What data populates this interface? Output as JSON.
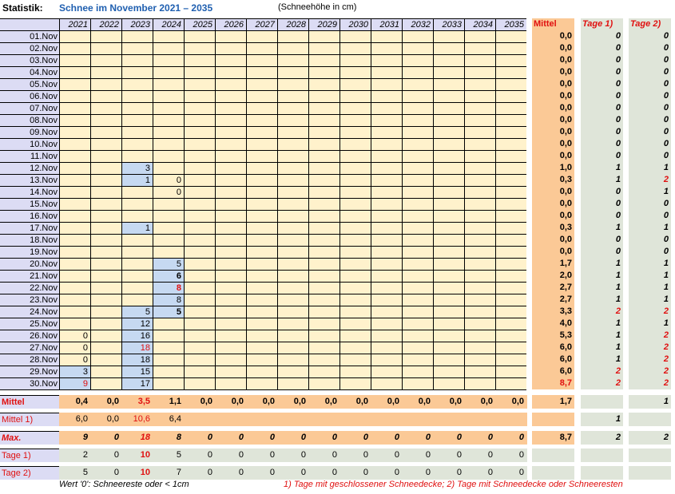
{
  "header": {
    "label": "Statistik:",
    "title": "Schnee im November 2021 – 2035",
    "unit": "(Schneehöhe in cm)"
  },
  "years": [
    "2021",
    "2022",
    "2023",
    "2024",
    "2025",
    "2026",
    "2027",
    "2028",
    "2029",
    "2030",
    "2031",
    "2032",
    "2033",
    "2034",
    "2035"
  ],
  "columns": {
    "mittel": "Mittel",
    "tage1": "Tage 1)",
    "tage2": "Tage 2)"
  },
  "days": [
    {
      "label": "01.Nov",
      "v": [
        null,
        null,
        null,
        null
      ],
      "mittel": "0,0",
      "t1": "0",
      "t2": "0"
    },
    {
      "label": "02.Nov",
      "v": [
        null,
        null,
        null,
        null
      ],
      "mittel": "0,0",
      "t1": "0",
      "t2": "0"
    },
    {
      "label": "03.Nov",
      "v": [
        null,
        null,
        null,
        null
      ],
      "mittel": "0,0",
      "t1": "0",
      "t2": "0"
    },
    {
      "label": "04.Nov",
      "v": [
        null,
        null,
        null,
        null
      ],
      "mittel": "0,0",
      "t1": "0",
      "t2": "0"
    },
    {
      "label": "05.Nov",
      "v": [
        null,
        null,
        null,
        null
      ],
      "mittel": "0,0",
      "t1": "0",
      "t2": "0"
    },
    {
      "label": "06.Nov",
      "v": [
        null,
        null,
        null,
        null
      ],
      "mittel": "0,0",
      "t1": "0",
      "t2": "0"
    },
    {
      "label": "07.Nov",
      "v": [
        null,
        null,
        null,
        null
      ],
      "mittel": "0,0",
      "t1": "0",
      "t2": "0"
    },
    {
      "label": "08.Nov",
      "v": [
        null,
        null,
        null,
        null
      ],
      "mittel": "0,0",
      "t1": "0",
      "t2": "0"
    },
    {
      "label": "09.Nov",
      "v": [
        null,
        null,
        null,
        null
      ],
      "mittel": "0,0",
      "t1": "0",
      "t2": "0"
    },
    {
      "label": "10.Nov",
      "v": [
        null,
        null,
        null,
        null
      ],
      "mittel": "0,0",
      "t1": "0",
      "t2": "0"
    },
    {
      "label": "11.Nov",
      "v": [
        null,
        null,
        null,
        null
      ],
      "mittel": "0,0",
      "t1": "0",
      "t2": "0"
    },
    {
      "label": "12.Nov",
      "v": [
        null,
        null,
        "3",
        null
      ],
      "mittel": "1,0",
      "t1": "1",
      "t2": "1"
    },
    {
      "label": "13.Nov",
      "v": [
        null,
        null,
        "1",
        "0"
      ],
      "mittel": "0,3",
      "t1": "1",
      "t2": "2"
    },
    {
      "label": "14.Nov",
      "v": [
        null,
        null,
        null,
        "0"
      ],
      "mittel": "0,0",
      "t1": "0",
      "t2": "1"
    },
    {
      "label": "15.Nov",
      "v": [
        null,
        null,
        null,
        null
      ],
      "mittel": "0,0",
      "t1": "0",
      "t2": "0"
    },
    {
      "label": "16.Nov",
      "v": [
        null,
        null,
        null,
        null
      ],
      "mittel": "0,0",
      "t1": "0",
      "t2": "0"
    },
    {
      "label": "17.Nov",
      "v": [
        null,
        null,
        "1",
        null
      ],
      "mittel": "0,3",
      "t1": "1",
      "t2": "1"
    },
    {
      "label": "18.Nov",
      "v": [
        null,
        null,
        null,
        null
      ],
      "mittel": "0,0",
      "t1": "0",
      "t2": "0"
    },
    {
      "label": "19.Nov",
      "v": [
        null,
        null,
        null,
        null
      ],
      "mittel": "0,0",
      "t1": "0",
      "t2": "0"
    },
    {
      "label": "20.Nov",
      "v": [
        null,
        null,
        null,
        "5"
      ],
      "mittel": "1,7",
      "t1": "1",
      "t2": "1"
    },
    {
      "label": "21.Nov",
      "v": [
        null,
        null,
        null,
        "6"
      ],
      "mittel": "2,0",
      "t1": "1",
      "t2": "1"
    },
    {
      "label": "22.Nov",
      "v": [
        null,
        null,
        null,
        "8"
      ],
      "mittel": "2,7",
      "t1": "1",
      "t2": "1"
    },
    {
      "label": "23.Nov",
      "v": [
        null,
        null,
        null,
        "8"
      ],
      "mittel": "2,7",
      "t1": "1",
      "t2": "1"
    },
    {
      "label": "24.Nov",
      "v": [
        null,
        null,
        "5",
        "5"
      ],
      "mittel": "3,3",
      "t1": "2",
      "t2": "2"
    },
    {
      "label": "25.Nov",
      "v": [
        null,
        null,
        "12",
        null
      ],
      "mittel": "4,0",
      "t1": "1",
      "t2": "1"
    },
    {
      "label": "26.Nov",
      "v": [
        "0",
        null,
        "16",
        null
      ],
      "mittel": "5,3",
      "t1": "1",
      "t2": "2"
    },
    {
      "label": "27.Nov",
      "v": [
        "0",
        null,
        "18",
        null
      ],
      "mittel": "6,0",
      "t1": "1",
      "t2": "2"
    },
    {
      "label": "28.Nov",
      "v": [
        "0",
        null,
        "18",
        null
      ],
      "mittel": "6,0",
      "t1": "1",
      "t2": "2"
    },
    {
      "label": "29.Nov",
      "v": [
        "3",
        null,
        "15",
        null
      ],
      "mittel": "6,0",
      "t1": "2",
      "t2": "2"
    },
    {
      "label": "30.Nov",
      "v": [
        "9",
        null,
        "17",
        null
      ],
      "mittel": "8,7",
      "t1": "2",
      "t2": "2"
    }
  ],
  "summary": {
    "mittel": {
      "label": "Mittel",
      "values": [
        "0,4",
        "0,0",
        "3,5",
        "1,1",
        "0,0",
        "0,0",
        "0,0",
        "0,0",
        "0,0",
        "0,0",
        "0,0",
        "0,0",
        "0,0",
        "0,0",
        "0,0"
      ],
      "mittel": "1,7",
      "t1": "",
      "t2": "1"
    },
    "mittel1": {
      "label": "Mittel 1)",
      "values": [
        "6,0",
        "0,0",
        "10,6",
        "6,4"
      ],
      "mittel": "",
      "t1": "1",
      "t2": ""
    },
    "max": {
      "label": "Max.",
      "values": [
        "9",
        "0",
        "18",
        "8",
        "0",
        "0",
        "0",
        "0",
        "0",
        "0",
        "0",
        "0",
        "0",
        "0",
        "0"
      ],
      "mittel": "8,7",
      "t1": "2",
      "t2": "2"
    },
    "tage1": {
      "label": "Tage 1)",
      "values": [
        "2",
        "0",
        "10",
        "5",
        "0",
        "0",
        "0",
        "0",
        "0",
        "0",
        "0",
        "0",
        "0",
        "0",
        "0"
      ]
    },
    "tage2": {
      "label": "Tage 2)",
      "values": [
        "5",
        "0",
        "10",
        "7",
        "0",
        "0",
        "0",
        "0",
        "0",
        "0",
        "0",
        "0",
        "0",
        "0",
        "0"
      ]
    }
  },
  "footnotes": {
    "left": "Wert '0': Schneereste oder < 1cm",
    "right": "1) Tage mit geschlossener Schneedecke;  2) Tage mit Schneedecke oder Schneeresten"
  },
  "colors": {
    "cream": "#fff2cc",
    "blue": "#c6d9f1",
    "lilac": "#dcdcf4",
    "orange": "#fbc996",
    "gray": "#dfe5d9",
    "red": "#e01010",
    "titleblue": "#1f5fb0"
  }
}
